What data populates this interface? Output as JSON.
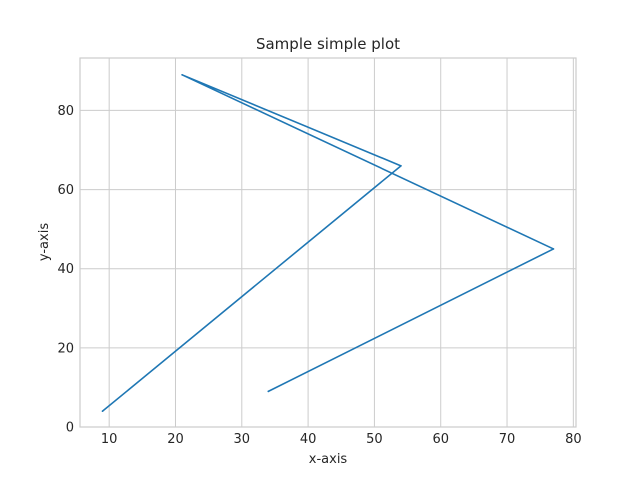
{
  "chart_data": {
    "type": "line",
    "title": "Sample simple plot",
    "xlabel": "x-axis",
    "ylabel": "y-axis",
    "x": [
      34,
      77,
      21,
      54,
      9
    ],
    "y": [
      9,
      45,
      89,
      66,
      4
    ],
    "xlim": [
      5.6,
      80.4
    ],
    "ylim": [
      0,
      93.25
    ],
    "xticks": [
      10,
      20,
      30,
      40,
      50,
      60,
      70,
      80
    ],
    "yticks": [
      0,
      20,
      40,
      60,
      80
    ],
    "grid": true,
    "line_color": "#1f77b4"
  }
}
